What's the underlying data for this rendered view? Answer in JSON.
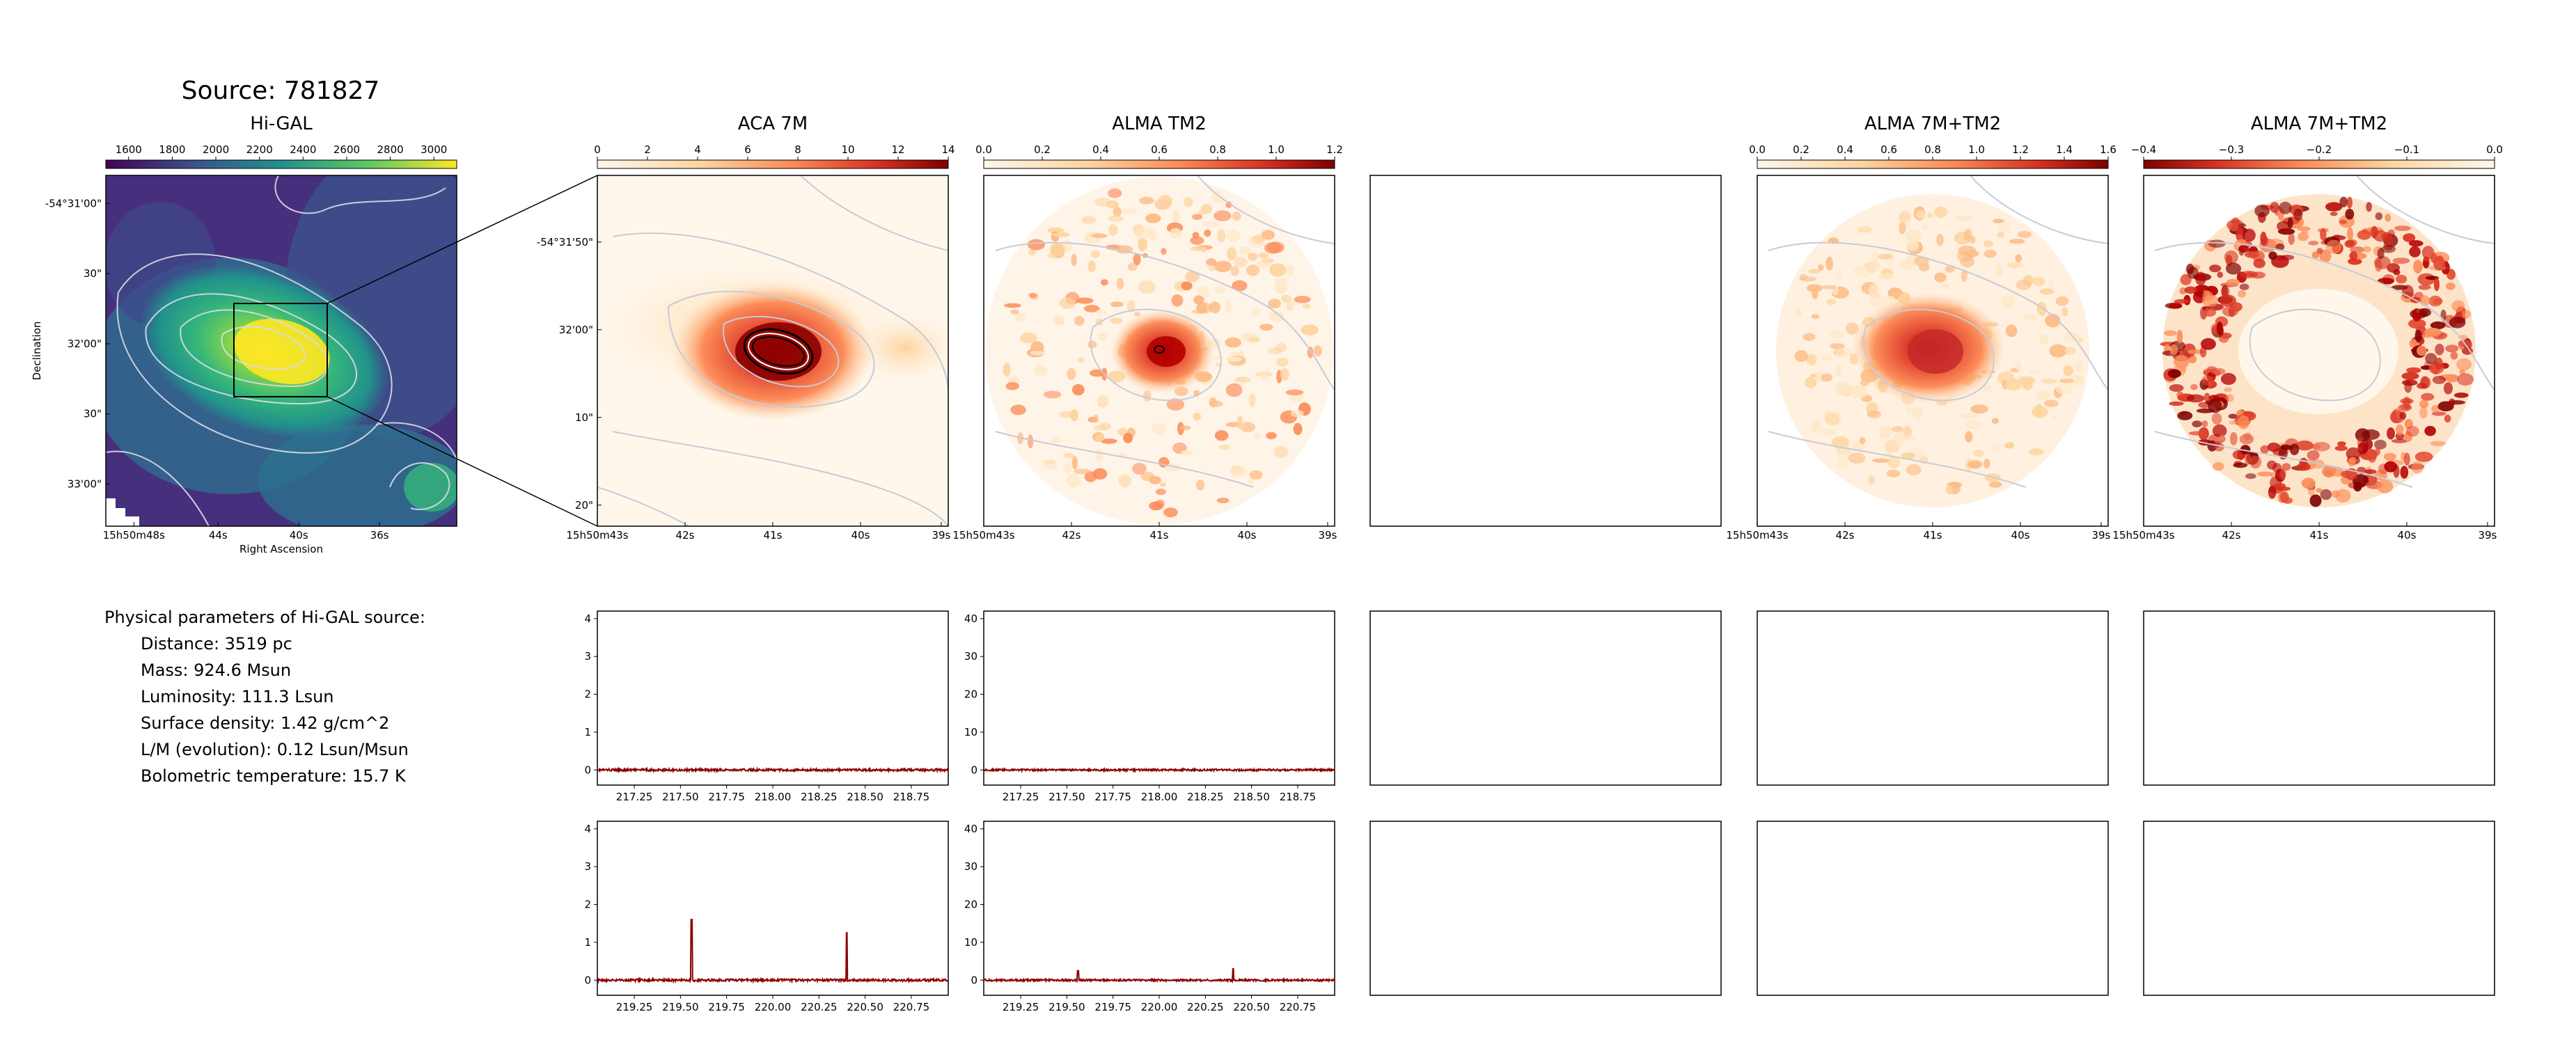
{
  "source_title": "Source: 781827",
  "panels": {
    "higal": {
      "title": "Hi-GAL",
      "xlabel": "Right Ascension",
      "ylabel": "Declination",
      "ra_ticks": [
        "15h50m48s",
        "44s",
        "40s",
        "36s"
      ],
      "dec_ticks": [
        "-54°31'00\"",
        "30\"",
        "32'00\"",
        "30\"",
        "33'00\""
      ],
      "colorbar_ticks": [
        "1600",
        "1800",
        "2000",
        "2200",
        "2400",
        "2600",
        "2800",
        "3000"
      ],
      "colormap": "viridis"
    },
    "aca7m": {
      "title": "ACA 7M",
      "ra_ticks": [
        "15h50m43s",
        "42s",
        "41s",
        "40s",
        "39s"
      ],
      "dec_ticks": [
        "-54°31'50\"",
        "32'00\"",
        "10\"",
        "20\""
      ],
      "colorbar_ticks": [
        "0",
        "2",
        "4",
        "6",
        "8",
        "10",
        "12",
        "14"
      ]
    },
    "almatm2": {
      "title": "ALMA TM2",
      "ra_ticks": [
        "15h50m43s",
        "42s",
        "41s",
        "40s",
        "39s"
      ],
      "colorbar_ticks": [
        "0.0",
        "0.2",
        "0.4",
        "0.6",
        "0.8",
        "1.0",
        "1.2"
      ]
    },
    "combined": {
      "title": "ALMA 7M+TM2",
      "ra_ticks": [
        "15h50m43s",
        "42s",
        "41s",
        "40s",
        "39s"
      ],
      "colorbar_ticks": [
        "0.0",
        "0.2",
        "0.4",
        "0.6",
        "0.8",
        "1.0",
        "1.2",
        "1.4",
        "1.6"
      ]
    },
    "combined_neg": {
      "title": "ALMA 7M+TM2",
      "ra_ticks": [
        "15h50m43s",
        "42s",
        "41s",
        "40s",
        "39s"
      ],
      "colorbar_ticks": [
        "−0.4",
        "−0.3",
        "−0.2",
        "−0.1",
        "0.0"
      ]
    }
  },
  "physical": {
    "heading": "Physical parameters of Hi-GAL source:",
    "lines": [
      "Distance: 3519 pc",
      "Mass: 924.6 Msun",
      "Luminosity: 111.3 Lsun",
      "Surface density: 1.42 g/cm^2",
      "L/M (evolution): 0.12 Lsun/Msun",
      "Bolometric temperature: 15.7 K"
    ]
  },
  "colors": {
    "spectrum": "#8b0000",
    "contour": "#c7cbd6",
    "hot_peak": "#9e0000"
  },
  "chart_data": [
    {
      "type": "line",
      "id": "aca7m_spw1",
      "xlim": [
        217.05,
        218.95
      ],
      "ylim": [
        -0.4,
        4.2
      ],
      "xticks": [
        "217.25",
        "217.50",
        "217.75",
        "218.00",
        "218.25",
        "218.50",
        "218.75"
      ],
      "yticks": [
        "0",
        "1",
        "2",
        "3",
        "4"
      ],
      "series": [
        {
          "noise": 0.03,
          "peaks": []
        }
      ]
    },
    {
      "type": "line",
      "id": "almatm2_spw1",
      "xlim": [
        217.05,
        218.95
      ],
      "ylim": [
        -4,
        42
      ],
      "xticks": [
        "217.25",
        "217.50",
        "217.75",
        "218.00",
        "218.25",
        "218.50",
        "218.75"
      ],
      "yticks": [
        "0",
        "10",
        "20",
        "30",
        "40"
      ],
      "series": [
        {
          "noise": 0.25,
          "peaks": []
        }
      ]
    },
    {
      "type": "line",
      "id": "aca7m_spw2",
      "xlim": [
        219.05,
        220.95
      ],
      "ylim": [
        -0.4,
        4.2
      ],
      "xticks": [
        "219.25",
        "219.50",
        "219.75",
        "220.00",
        "220.25",
        "220.50",
        "220.75"
      ],
      "yticks": [
        "0",
        "1",
        "2",
        "3",
        "4"
      ],
      "series": [
        {
          "noise": 0.03,
          "peaks": [
            [
              219.56,
              1.6
            ],
            [
              220.4,
              1.25
            ]
          ]
        }
      ]
    },
    {
      "type": "line",
      "id": "almatm2_spw2",
      "xlim": [
        219.05,
        220.95
      ],
      "ylim": [
        -4,
        42
      ],
      "xticks": [
        "219.25",
        "219.50",
        "219.75",
        "220.00",
        "220.25",
        "220.50",
        "220.75"
      ],
      "yticks": [
        "0",
        "10",
        "20",
        "30",
        "40"
      ],
      "series": [
        {
          "noise": 0.25,
          "peaks": [
            [
              219.56,
              2.5
            ],
            [
              220.4,
              3.0
            ]
          ]
        }
      ]
    }
  ]
}
